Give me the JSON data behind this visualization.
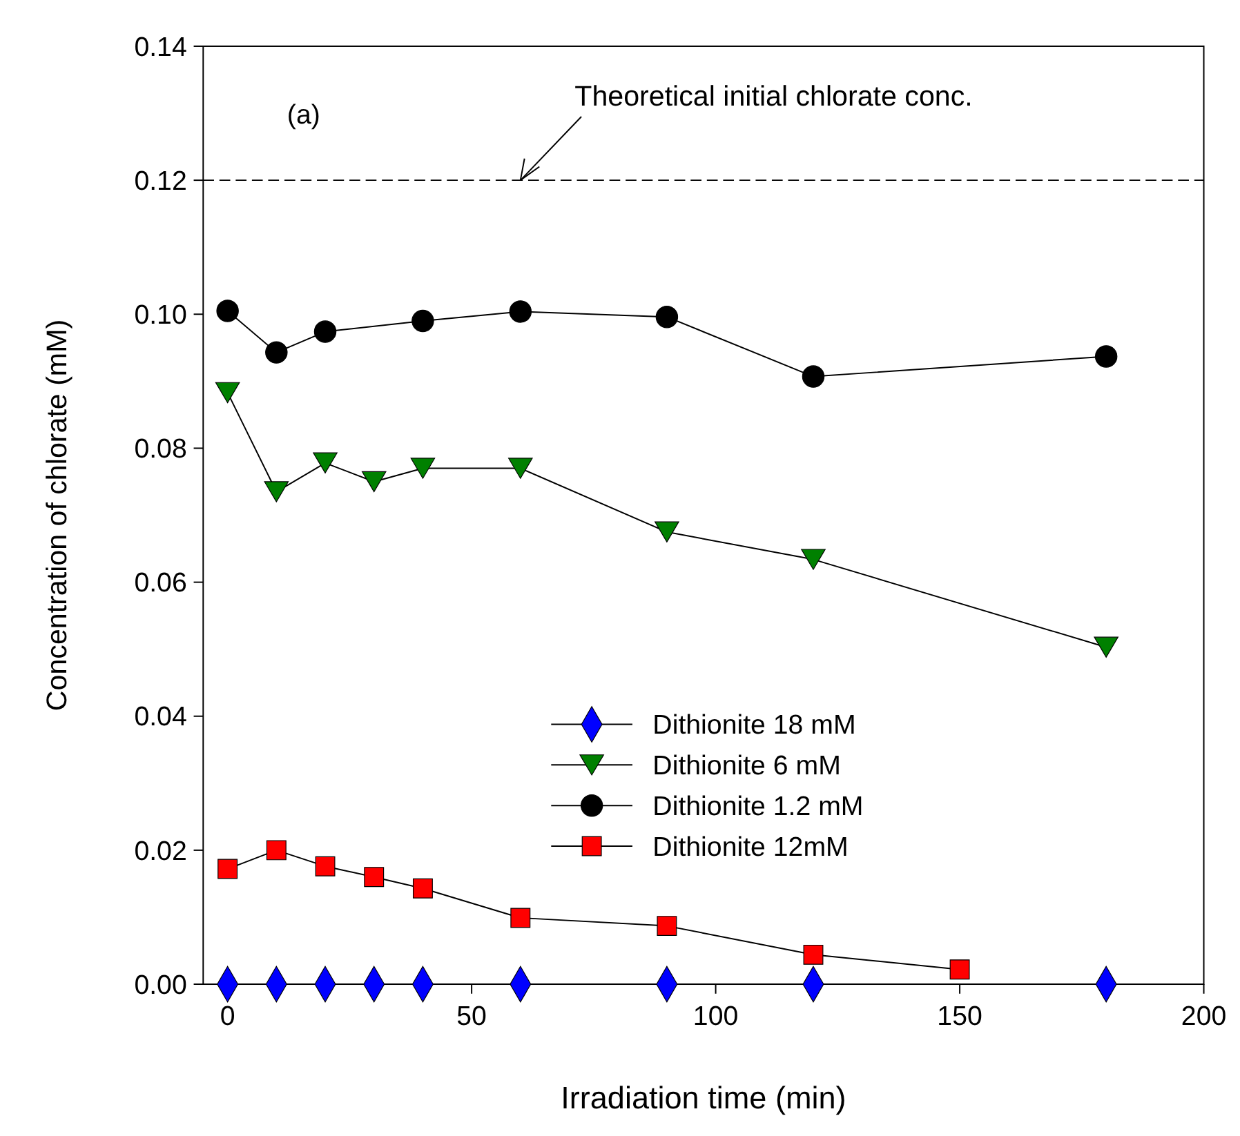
{
  "chart_data": {
    "type": "line",
    "xlabel": "Irradiation time (min)",
    "ylabel": "Concentration of chlorate (mM)",
    "xlim": [
      -5,
      200
    ],
    "xticks": [
      0,
      50,
      100,
      150,
      200
    ],
    "ylim": [
      0,
      0.14
    ],
    "yticks": [
      {
        "value": 0,
        "label": "0.00"
      },
      {
        "value": 0.02,
        "label": "0.02"
      },
      {
        "value": 0.04,
        "label": "0.04"
      },
      {
        "value": 0.06,
        "label": "0.06"
      },
      {
        "value": 0.08,
        "label": "0.08"
      },
      {
        "value": 0.1,
        "label": "0.10"
      },
      {
        "value": 0.12,
        "label": "0.12"
      },
      {
        "value": 0.14,
        "label": "0.14"
      }
    ],
    "grid": false,
    "legend": "bottom",
    "line_style": "solid",
    "series": [
      {
        "name": "Dithionite 18 mM",
        "color": "#0000ff",
        "marker": "diamond",
        "x": [
          0,
          10,
          20,
          30,
          40,
          60,
          90,
          120,
          180
        ],
        "values": [
          0,
          0,
          0,
          0,
          0,
          0,
          0,
          0,
          0
        ]
      },
      {
        "name": "Dithionite 6 mM",
        "color": "#008000",
        "marker": "triangle-down",
        "x": [
          0,
          10,
          20,
          30,
          40,
          60,
          90,
          120,
          180
        ],
        "values": [
          0.0883,
          0.0735,
          0.0778,
          0.075,
          0.077,
          0.077,
          0.0675,
          0.0634,
          0.0503
        ]
      },
      {
        "name": "Dithionite 1.2 mM",
        "color": "#000000",
        "marker": "circle",
        "x": [
          0,
          10,
          20,
          40,
          60,
          90,
          120,
          180
        ],
        "values": [
          0.1005,
          0.0943,
          0.0974,
          0.099,
          0.1004,
          0.0996,
          0.0907,
          0.0937
        ]
      },
      {
        "name": "Dithionite 12mM",
        "color": "#ff0000",
        "marker": "square",
        "x": [
          0,
          10,
          20,
          30,
          40,
          60,
          90,
          120,
          150
        ],
        "values": [
          0.0172,
          0.02,
          0.0176,
          0.016,
          0.0143,
          0.0099,
          0.0087,
          0.0044,
          0.0022
        ]
      }
    ],
    "ref_lines": [
      {
        "axis": "y",
        "value": 0.12,
        "color": "#000000",
        "line_style": "dashed"
      }
    ],
    "annotations": [
      "(a)",
      {
        "text": "Theoretical initial chlorate conc.",
        "x": 60,
        "y": 0.12
      }
    ]
  }
}
